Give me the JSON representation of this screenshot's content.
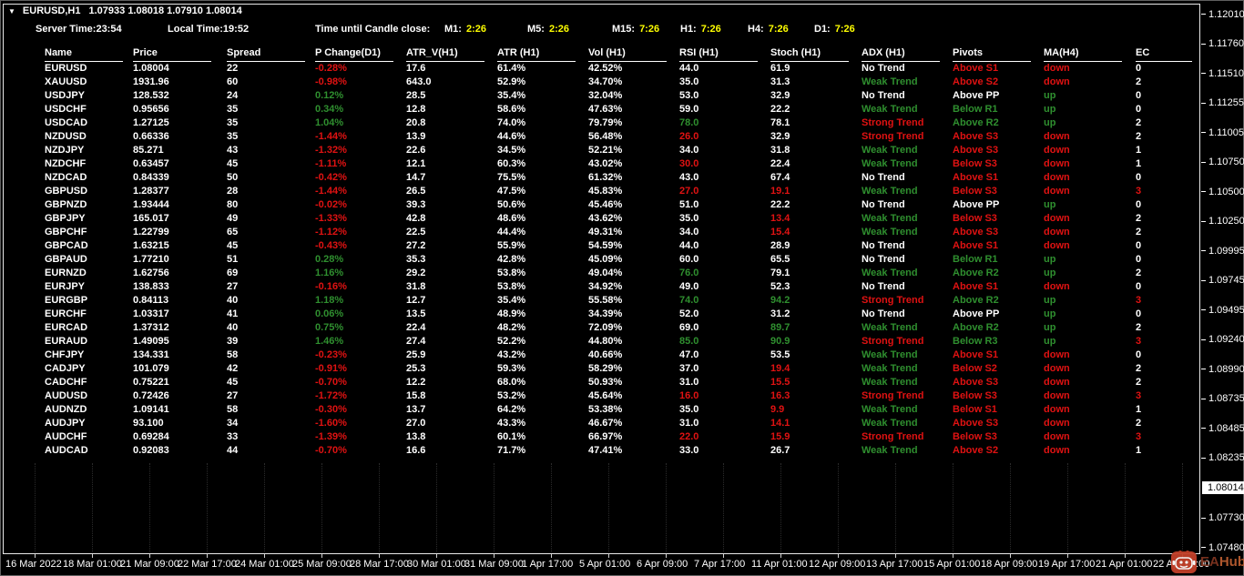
{
  "header": {
    "arrow": "▼",
    "symbol_period": "EURUSD,H1",
    "ohlc": "1.07933 1.08018 1.07910 1.08014"
  },
  "topbar": {
    "server_time": "Server Time:23:54",
    "local_time": "Local Time:19:52",
    "candle_close_label": "Time until Candle close:",
    "countdowns": [
      {
        "label": "M1:",
        "value": "2:26"
      },
      {
        "label": "M5:",
        "value": "2:26"
      },
      {
        "label": "M15:",
        "value": "7:26"
      },
      {
        "label": "H1:",
        "value": "7:26"
      },
      {
        "label": "H4:",
        "value": "7:26"
      },
      {
        "label": "D1:",
        "value": "7:26"
      }
    ]
  },
  "table": {
    "columns": [
      "Name",
      "Price",
      "Spread",
      "P Change(D1)",
      "ATR_V(H1)",
      "ATR (H1)",
      "Vol (H1)",
      "RSI (H1)",
      "Stoch (H1)",
      "ADX (H1)",
      "Pivots",
      "MA(H4)",
      "EC"
    ],
    "rows": [
      [
        "EURUSD",
        "1.08004",
        "22",
        "-0.28%",
        "17.6",
        "61.4%",
        "42.52%",
        "44.0",
        "61.9",
        "No Trend",
        "Above S1",
        "down",
        "0"
      ],
      [
        "XAUUSD",
        "1931.96",
        "60",
        "-0.98%",
        "643.0",
        "52.9%",
        "34.70%",
        "35.0",
        "31.3",
        "Weak Trend",
        "Above S2",
        "down",
        "2"
      ],
      [
        "USDJPY",
        "128.532",
        "24",
        "0.12%",
        "28.5",
        "35.4%",
        "32.04%",
        "53.0",
        "32.9",
        "No Trend",
        "Above PP",
        "up",
        "0"
      ],
      [
        "USDCHF",
        "0.95656",
        "35",
        "0.34%",
        "12.8",
        "58.6%",
        "47.63%",
        "59.0",
        "22.2",
        "Weak Trend",
        "Below R1",
        "up",
        "0"
      ],
      [
        "USDCAD",
        "1.27125",
        "35",
        "1.04%",
        "20.8",
        "74.0%",
        "79.79%",
        "78.0",
        "78.1",
        "Strong Trend",
        "Above R2",
        "up",
        "2"
      ],
      [
        "NZDUSD",
        "0.66336",
        "35",
        "-1.44%",
        "13.9",
        "44.6%",
        "56.48%",
        "26.0",
        "32.9",
        "Strong Trend",
        "Above S3",
        "down",
        "2"
      ],
      [
        "NZDJPY",
        "85.271",
        "43",
        "-1.32%",
        "22.6",
        "34.5%",
        "52.21%",
        "34.0",
        "31.8",
        "Weak Trend",
        "Above S3",
        "down",
        "1"
      ],
      [
        "NZDCHF",
        "0.63457",
        "45",
        "-1.11%",
        "12.1",
        "60.3%",
        "43.02%",
        "30.0",
        "22.4",
        "Weak Trend",
        "Below S3",
        "down",
        "1"
      ],
      [
        "NZDCAD",
        "0.84339",
        "50",
        "-0.42%",
        "14.7",
        "75.5%",
        "61.32%",
        "43.0",
        "67.4",
        "No Trend",
        "Above S1",
        "down",
        "0"
      ],
      [
        "GBPUSD",
        "1.28377",
        "28",
        "-1.44%",
        "26.5",
        "47.5%",
        "45.83%",
        "27.0",
        "19.1",
        "Weak Trend",
        "Below S3",
        "down",
        "3"
      ],
      [
        "GBPNZD",
        "1.93444",
        "80",
        "-0.02%",
        "39.3",
        "50.6%",
        "45.46%",
        "51.0",
        "22.2",
        "No Trend",
        "Above PP",
        "up",
        "0"
      ],
      [
        "GBPJPY",
        "165.017",
        "49",
        "-1.33%",
        "42.8",
        "48.6%",
        "43.62%",
        "35.0",
        "13.4",
        "Weak Trend",
        "Below S3",
        "down",
        "2"
      ],
      [
        "GBPCHF",
        "1.22799",
        "65",
        "-1.12%",
        "22.5",
        "44.4%",
        "49.31%",
        "34.0",
        "15.4",
        "Weak Trend",
        "Above S3",
        "down",
        "2"
      ],
      [
        "GBPCAD",
        "1.63215",
        "45",
        "-0.43%",
        "27.2",
        "55.9%",
        "54.59%",
        "44.0",
        "28.9",
        "No Trend",
        "Above S1",
        "down",
        "0"
      ],
      [
        "GBPAUD",
        "1.77210",
        "51",
        "0.28%",
        "35.3",
        "42.8%",
        "45.09%",
        "60.0",
        "65.5",
        "No Trend",
        "Below R1",
        "up",
        "0"
      ],
      [
        "EURNZD",
        "1.62756",
        "69",
        "1.16%",
        "29.2",
        "53.8%",
        "49.04%",
        "76.0",
        "79.1",
        "Weak Trend",
        "Above R2",
        "up",
        "2"
      ],
      [
        "EURJPY",
        "138.833",
        "27",
        "-0.16%",
        "31.8",
        "53.8%",
        "34.92%",
        "49.0",
        "52.3",
        "No Trend",
        "Above S1",
        "down",
        "0"
      ],
      [
        "EURGBP",
        "0.84113",
        "40",
        "1.18%",
        "12.7",
        "35.4%",
        "55.58%",
        "74.0",
        "94.2",
        "Strong Trend",
        "Above R2",
        "up",
        "3"
      ],
      [
        "EURCHF",
        "1.03317",
        "41",
        "0.06%",
        "13.5",
        "48.9%",
        "34.39%",
        "52.0",
        "31.2",
        "No Trend",
        "Above PP",
        "up",
        "0"
      ],
      [
        "EURCAD",
        "1.37312",
        "40",
        "0.75%",
        "22.4",
        "48.2%",
        "72.09%",
        "69.0",
        "89.7",
        "Weak Trend",
        "Above R2",
        "up",
        "2"
      ],
      [
        "EURAUD",
        "1.49095",
        "39",
        "1.46%",
        "27.4",
        "52.2%",
        "44.80%",
        "85.0",
        "90.9",
        "Strong Trend",
        "Below R3",
        "up",
        "3"
      ],
      [
        "CHFJPY",
        "134.331",
        "58",
        "-0.23%",
        "25.9",
        "43.2%",
        "40.66%",
        "47.0",
        "53.5",
        "Weak Trend",
        "Above S1",
        "down",
        "0"
      ],
      [
        "CADJPY",
        "101.079",
        "42",
        "-0.91%",
        "25.3",
        "59.3%",
        "58.29%",
        "37.0",
        "19.4",
        "Weak Trend",
        "Below S2",
        "down",
        "2"
      ],
      [
        "CADCHF",
        "0.75221",
        "45",
        "-0.70%",
        "12.2",
        "68.0%",
        "50.93%",
        "31.0",
        "15.5",
        "Weak Trend",
        "Above S3",
        "down",
        "2"
      ],
      [
        "AUDUSD",
        "0.72426",
        "27",
        "-1.72%",
        "15.8",
        "53.2%",
        "45.64%",
        "16.0",
        "16.3",
        "Strong Trend",
        "Below S3",
        "down",
        "3"
      ],
      [
        "AUDNZD",
        "1.09141",
        "58",
        "-0.30%",
        "13.7",
        "64.2%",
        "53.38%",
        "35.0",
        "9.9",
        "Weak Trend",
        "Below S1",
        "down",
        "1"
      ],
      [
        "AUDJPY",
        "93.100",
        "34",
        "-1.60%",
        "27.0",
        "43.3%",
        "46.67%",
        "31.0",
        "14.1",
        "Weak Trend",
        "Above S3",
        "down",
        "2"
      ],
      [
        "AUDCHF",
        "0.69284",
        "33",
        "-1.39%",
        "13.8",
        "60.1%",
        "66.97%",
        "22.0",
        "15.9",
        "Strong Trend",
        "Below S3",
        "down",
        "3"
      ],
      [
        "AUDCAD",
        "0.92083",
        "44",
        "-0.70%",
        "16.6",
        "71.7%",
        "47.41%",
        "33.0",
        "26.7",
        "Weak Trend",
        "Above S2",
        "down",
        "1"
      ]
    ]
  },
  "price_axis": {
    "ticks": [
      "1.12010",
      "1.11760",
      "1.11510",
      "1.11255",
      "1.11005",
      "1.10750",
      "1.10500",
      "1.10250",
      "1.09995",
      "1.09745",
      "1.09495",
      "1.09240",
      "1.08990",
      "1.08735",
      "1.08485",
      "1.08235"
    ],
    "current": "1.08014",
    "ticks_below": [
      "1.07730",
      "1.07480"
    ]
  },
  "time_axis": {
    "labels": [
      "16 Mar 2022",
      "18 Mar 01:00",
      "21 Mar 09:00",
      "22 Mar 17:00",
      "24 Mar 01:00",
      "25 Mar 09:00",
      "28 Mar 17:00",
      "30 Mar 01:00",
      "31 Mar 09:00",
      "1 Apr 17:00",
      "5 Apr 01:00",
      "6 Apr 09:00",
      "7 Apr 17:00",
      "11 Apr 01:00",
      "12 Apr 09:00",
      "13 Apr 17:00",
      "15 Apr 01:00",
      "18 Apr 09:00",
      "19 Apr 17:00",
      "21 Apr 01:00",
      "22 Apr 09:00"
    ]
  },
  "watermark": {
    "text_ea": "EA",
    "text_hub": "Hub"
  },
  "colors": {
    "red": "#e01212",
    "green": "#2f8f2f",
    "yellow": "#ffff00",
    "accent_watermark": "#b85c30"
  }
}
